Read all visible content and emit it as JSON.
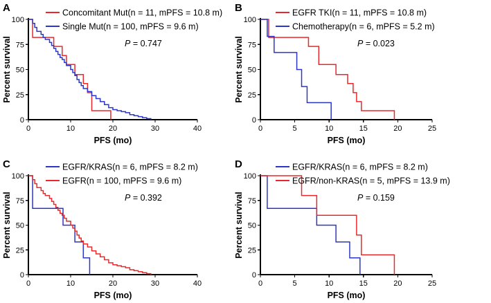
{
  "chart_data": [
    {
      "panel": "A",
      "type": "line",
      "step": true,
      "xlabel": "PFS (mo)",
      "ylabel": "Percent survival",
      "xlim": [
        0,
        40
      ],
      "ylim": [
        0,
        100
      ],
      "xticks": [
        0,
        10,
        20,
        30,
        40
      ],
      "yticks": [
        0,
        25,
        50,
        75,
        100
      ],
      "p_label": "P",
      "p_value": " = 0.747",
      "series": [
        {
          "name": "Concomitant Mut(n = 11, mPFS = 10.8 m)",
          "color": "#e8282b",
          "x": [
            0,
            1,
            5,
            6,
            8,
            9,
            11,
            13,
            14,
            15,
            19.5
          ],
          "y": [
            100,
            82,
            82,
            73,
            64,
            55,
            45,
            36,
            27,
            9,
            0
          ]
        },
        {
          "name": "Single Mut(n = 100, mPFS = 9.6 m)",
          "color": "#2b36c8",
          "x": [
            0,
            1,
            1.5,
            2,
            3,
            3.5,
            4,
            5,
            5.5,
            6,
            6.5,
            7,
            7.5,
            8,
            8.5,
            9,
            10,
            10.5,
            11,
            11.5,
            12,
            12.5,
            13,
            14,
            15,
            16,
            17,
            18,
            19,
            20,
            21,
            22,
            23,
            24,
            25,
            26,
            27,
            28,
            29
          ],
          "y": [
            100,
            96,
            92,
            88,
            85,
            82,
            80,
            77,
            74,
            71,
            68,
            65,
            62,
            60,
            57,
            54,
            50,
            47,
            44,
            40,
            37,
            34,
            31,
            28,
            24,
            21,
            18,
            15,
            12,
            10,
            9,
            8,
            7,
            5,
            4,
            3,
            2,
            1,
            0
          ]
        }
      ]
    },
    {
      "panel": "B",
      "type": "line",
      "step": true,
      "xlabel": "PFS (mo)",
      "ylabel": "Percent survival",
      "xlim": [
        0,
        25
      ],
      "ylim": [
        0,
        100
      ],
      "xticks": [
        0,
        5,
        10,
        15,
        20,
        25
      ],
      "yticks": [
        0,
        25,
        50,
        75,
        100
      ],
      "p_label": "P",
      "p_value": " = 0.023",
      "series": [
        {
          "name": "EGFR TKI(n = 11, mPFS = 10.8 m)",
          "color": "#e8282b",
          "x": [
            0,
            1.2,
            7,
            8.5,
            11,
            12.7,
            13.5,
            14,
            14.7,
            19.5
          ],
          "y": [
            100,
            82,
            73,
            55,
            45,
            36,
            27,
            18,
            9,
            0
          ]
        },
        {
          "name": "Chemotherapy(n = 6, mPFS = 5.2 m)",
          "color": "#2b36c8",
          "x": [
            0,
            1,
            2,
            5.3,
            6,
            6.8,
            10.3
          ],
          "y": [
            100,
            83,
            67,
            50,
            33,
            17,
            0
          ]
        }
      ]
    },
    {
      "panel": "C",
      "type": "line",
      "step": true,
      "xlabel": "PFS (mo)",
      "ylabel": "Percent survival",
      "xlim": [
        0,
        40
      ],
      "ylim": [
        0,
        100
      ],
      "xticks": [
        0,
        10,
        20,
        30,
        40
      ],
      "yticks": [
        0,
        25,
        50,
        75,
        100
      ],
      "p_label": "P",
      "p_value": " = 0.392",
      "series": [
        {
          "name": "EGFR/KRAS(n = 6, mPFS = 8.2 m)",
          "color": "#2b36c8",
          "x": [
            0,
            1,
            8,
            8.2,
            10,
            11,
            13,
            14.5
          ],
          "y": [
            100,
            67,
            67,
            50,
            50,
            33,
            17,
            0
          ]
        },
        {
          "name": "EGFR(n = 100, mPFS = 9.6 m)",
          "color": "#e8282b",
          "x": [
            0,
            1,
            1.5,
            2,
            3,
            3.5,
            4,
            5,
            5.5,
            6,
            6.5,
            7,
            7.5,
            8,
            8.5,
            9,
            10,
            10.5,
            11,
            11.5,
            12,
            12.5,
            13,
            14,
            15,
            16,
            17,
            18,
            19,
            20,
            21,
            22,
            23,
            24,
            25,
            26,
            27,
            28,
            29
          ],
          "y": [
            100,
            96,
            92,
            88,
            85,
            82,
            80,
            77,
            74,
            71,
            68,
            65,
            62,
            60,
            57,
            54,
            50,
            47,
            44,
            40,
            37,
            34,
            31,
            28,
            24,
            21,
            18,
            15,
            12,
            10,
            9,
            8,
            7,
            5,
            4,
            3,
            2,
            1,
            0
          ]
        }
      ]
    },
    {
      "panel": "D",
      "type": "line",
      "step": true,
      "xlabel": "PFS (mo)",
      "ylabel": "Percent survival",
      "xlim": [
        0,
        25
      ],
      "ylim": [
        0,
        100
      ],
      "xticks": [
        0,
        5,
        10,
        15,
        20,
        25
      ],
      "yticks": [
        0,
        25,
        50,
        75,
        100
      ],
      "p_label": "P",
      "p_value": " = 0.159",
      "series": [
        {
          "name": "EGFR/KRAS(n = 6, mPFS = 8.2 m)",
          "color": "#2b36c8",
          "x": [
            0,
            1,
            8.2,
            11,
            13,
            14.5
          ],
          "y": [
            100,
            67,
            50,
            33,
            17,
            0
          ]
        },
        {
          "name": "EGFR/non-KRAS(n = 5, mPFS = 13.9 m)",
          "color": "#e8282b",
          "x": [
            0,
            6,
            8.2,
            14,
            14.7,
            19.5
          ],
          "y": [
            100,
            80,
            60,
            40,
            20,
            0
          ]
        }
      ]
    }
  ]
}
